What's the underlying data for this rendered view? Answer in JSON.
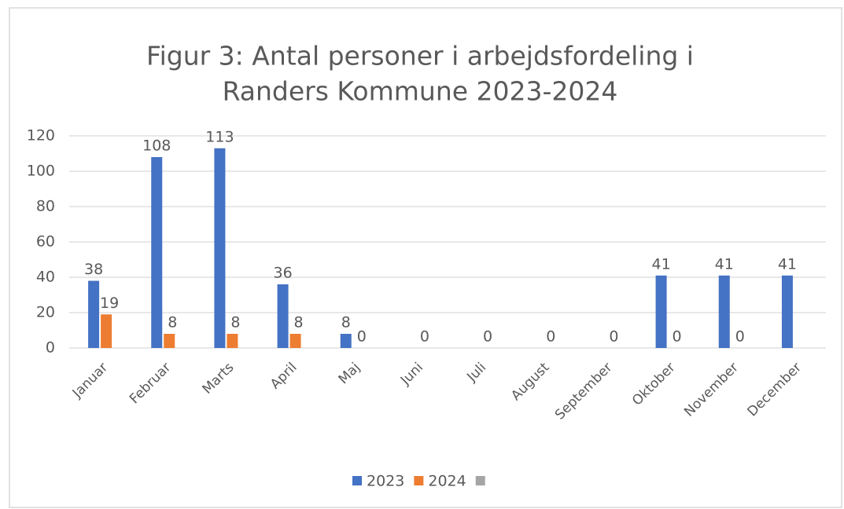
{
  "chart_data": {
    "type": "bar",
    "title": [
      "Figur 3: Antal personer i arbejdsfordeling i",
      "Randers Kommune 2023-2024"
    ],
    "categories": [
      "Januar",
      "Februar",
      "Marts",
      "April",
      "Maj",
      "Juni",
      "Juli",
      "August",
      "September",
      "Oktober",
      "November",
      "December"
    ],
    "series": [
      {
        "name": "2023",
        "color": "#4472c4",
        "values": [
          38,
          108,
          113,
          36,
          8,
          null,
          null,
          null,
          null,
          41,
          41,
          41
        ]
      },
      {
        "name": "2024",
        "color": "#ed7d31",
        "values": [
          19,
          8,
          8,
          8,
          0,
          0,
          0,
          0,
          0,
          0,
          0,
          null
        ]
      },
      {
        "color": "#a5a5a5",
        "values": [
          null,
          null,
          null,
          null,
          null,
          null,
          null,
          null,
          null,
          null,
          null,
          null
        ]
      }
    ],
    "ylim": [
      0,
      120
    ],
    "yticks": [
      0,
      20,
      40,
      60,
      80,
      100,
      120
    ],
    "grid": true,
    "legend": "bottom"
  }
}
